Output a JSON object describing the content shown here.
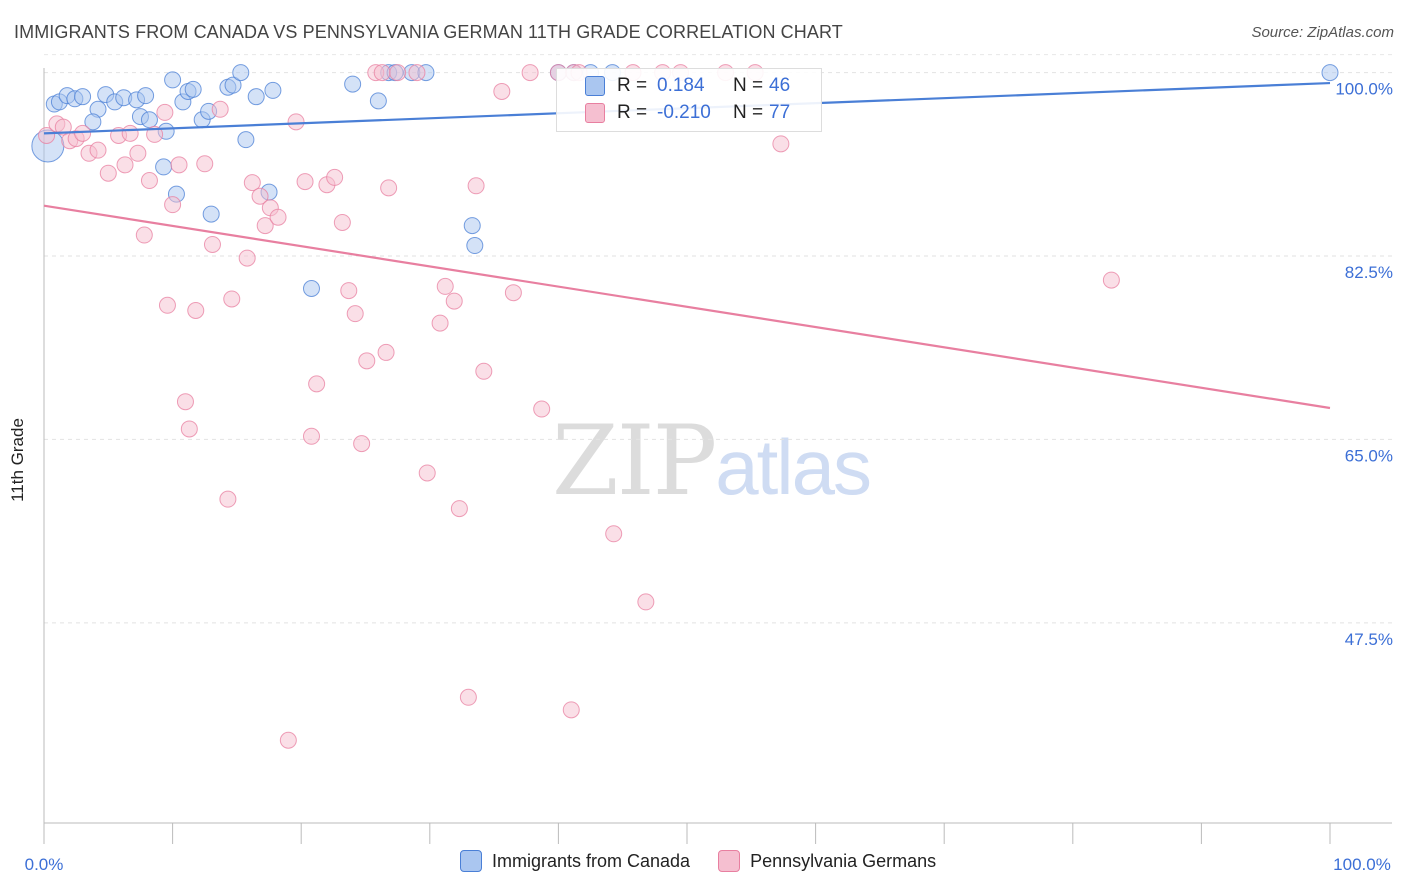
{
  "header": {
    "title": "IMMIGRANTS FROM CANADA VS PENNSYLVANIA GERMAN 11TH GRADE CORRELATION CHART",
    "source": "Source: ZipAtlas.com"
  },
  "watermark": {
    "zip": "ZIP",
    "atlas": "atlas"
  },
  "stats": {
    "r_label": "R =",
    "n_label": "N =",
    "rows": [
      {
        "r": "0.184",
        "n": "46",
        "color": "#4a7fd6"
      },
      {
        "r": "-0.210",
        "n": "77",
        "color": "#e87fa0"
      }
    ]
  },
  "chart_data": {
    "type": "scatter",
    "title": "IMMIGRANTS FROM CANADA VS PENNSYLVANIA GERMAN 11TH GRADE CORRELATION CHART",
    "xlabel": "",
    "ylabel": "11th Grade",
    "xlim": [
      0,
      100
    ],
    "ylim": [
      28.5,
      101.2
    ],
    "x_tick_labels": [
      "0.0%",
      "100.0%"
    ],
    "y_ticks": [
      100,
      82.5,
      65,
      47.5
    ],
    "y_tick_labels": [
      "100.0%",
      "82.5%",
      "65.0%",
      "47.5%"
    ],
    "grid": true,
    "legend_position": "bottom-center",
    "series": [
      {
        "name": "Immigrants from Canada",
        "color": "#4a7fd6",
        "fill": "#aac6f0",
        "trend": {
          "x": [
            0,
            100
          ],
          "y": [
            94.2,
            99.0
          ]
        },
        "points": [
          [
            0.3,
            93.0,
            "big"
          ],
          [
            0.8,
            97.0
          ],
          [
            1.2,
            97.2
          ],
          [
            1.8,
            97.8
          ],
          [
            2.4,
            97.5
          ],
          [
            3.0,
            97.7
          ],
          [
            4.2,
            96.5
          ],
          [
            4.8,
            97.9
          ],
          [
            5.5,
            97.2
          ],
          [
            6.2,
            97.6
          ],
          [
            7.2,
            97.4
          ],
          [
            7.9,
            97.8
          ],
          [
            3.8,
            95.3
          ],
          [
            7.5,
            95.8
          ],
          [
            8.2,
            95.5
          ],
          [
            9.5,
            94.4
          ],
          [
            9.3,
            91.0
          ],
          [
            10.0,
            99.3
          ],
          [
            10.3,
            88.4
          ],
          [
            10.8,
            97.2
          ],
          [
            11.2,
            98.2
          ],
          [
            11.6,
            98.4
          ],
          [
            12.3,
            95.5
          ],
          [
            12.8,
            96.3
          ],
          [
            13.0,
            86.5
          ],
          [
            14.3,
            98.6
          ],
          [
            14.7,
            98.8
          ],
          [
            15.3,
            100.0
          ],
          [
            15.7,
            93.6
          ],
          [
            16.5,
            97.7
          ],
          [
            17.5,
            88.6
          ],
          [
            17.8,
            98.3
          ],
          [
            20.8,
            79.4
          ],
          [
            24.0,
            98.9
          ],
          [
            26.0,
            97.3
          ],
          [
            42.5,
            100.0
          ],
          [
            44.2,
            100.0
          ],
          [
            33.5,
            83.5
          ],
          [
            33.3,
            85.4
          ],
          [
            40.0,
            100.0
          ],
          [
            41.2,
            100.0
          ],
          [
            26.8,
            100.0
          ],
          [
            27.3,
            100.0
          ],
          [
            28.6,
            100.0
          ],
          [
            29.7,
            100.0
          ],
          [
            100.0,
            100.0
          ]
        ]
      },
      {
        "name": "Pennsylvania Germans",
        "color": "#e87fa0",
        "fill": "#f5bfd0",
        "trend": {
          "x": [
            0,
            100
          ],
          "y": [
            87.3,
            68.0
          ]
        },
        "points": [
          [
            0.2,
            94.0
          ],
          [
            1.0,
            95.1
          ],
          [
            1.5,
            94.8
          ],
          [
            2.0,
            93.5
          ],
          [
            2.5,
            93.7
          ],
          [
            3.0,
            94.2
          ],
          [
            3.5,
            92.3
          ],
          [
            4.2,
            92.6
          ],
          [
            5.0,
            90.4
          ],
          [
            5.8,
            94.0
          ],
          [
            6.3,
            91.2
          ],
          [
            6.7,
            94.2
          ],
          [
            7.3,
            92.3
          ],
          [
            7.8,
            84.5
          ],
          [
            8.2,
            89.7
          ],
          [
            8.6,
            94.1
          ],
          [
            9.4,
            96.2
          ],
          [
            10.0,
            87.4
          ],
          [
            9.6,
            77.8
          ],
          [
            10.5,
            91.2
          ],
          [
            11.0,
            68.6
          ],
          [
            11.3,
            66.0
          ],
          [
            11.8,
            77.3
          ],
          [
            12.5,
            91.3
          ],
          [
            13.1,
            83.6
          ],
          [
            13.7,
            96.5
          ],
          [
            14.3,
            59.3
          ],
          [
            14.6,
            78.4
          ],
          [
            15.8,
            82.3
          ],
          [
            16.2,
            89.5
          ],
          [
            16.8,
            88.2
          ],
          [
            17.2,
            85.4
          ],
          [
            17.6,
            87.1
          ],
          [
            18.2,
            86.2
          ],
          [
            19.0,
            36.3
          ],
          [
            19.6,
            95.3
          ],
          [
            20.3,
            89.6
          ],
          [
            20.8,
            65.3
          ],
          [
            21.2,
            70.3
          ],
          [
            22.0,
            89.3
          ],
          [
            22.6,
            90.0
          ],
          [
            23.2,
            85.7
          ],
          [
            23.7,
            79.2
          ],
          [
            24.2,
            77.0
          ],
          [
            24.7,
            64.6
          ],
          [
            25.1,
            72.5
          ],
          [
            25.8,
            100.0
          ],
          [
            26.3,
            100.0
          ],
          [
            26.8,
            89.0
          ],
          [
            26.6,
            73.3
          ],
          [
            27.5,
            100.0
          ],
          [
            29.0,
            100.0
          ],
          [
            29.8,
            61.8
          ],
          [
            30.8,
            76.1
          ],
          [
            31.2,
            79.6
          ],
          [
            31.9,
            78.2
          ],
          [
            32.3,
            58.4
          ],
          [
            33.0,
            40.4
          ],
          [
            33.6,
            89.2
          ],
          [
            34.2,
            71.5
          ],
          [
            35.6,
            98.2
          ],
          [
            37.8,
            100.0
          ],
          [
            38.7,
            67.9
          ],
          [
            40.0,
            100.0
          ],
          [
            41.2,
            100.0
          ],
          [
            41.6,
            100.0
          ],
          [
            41.0,
            39.2
          ],
          [
            44.3,
            56.0
          ],
          [
            46.8,
            49.5
          ],
          [
            48.1,
            100.0
          ],
          [
            55.3,
            100.0
          ],
          [
            57.3,
            93.2
          ],
          [
            83.0,
            80.2
          ],
          [
            45.8,
            100.0
          ],
          [
            49.5,
            100.0
          ],
          [
            53.0,
            100.0
          ],
          [
            36.5,
            79.0
          ]
        ]
      }
    ]
  },
  "legend": {
    "items": [
      {
        "label": "Immigrants from Canada",
        "color": "#4a7fd6",
        "fill": "#aac6f0"
      },
      {
        "label": "Pennsylvania Germans",
        "color": "#e87fa0",
        "fill": "#f5bfd0"
      }
    ]
  }
}
